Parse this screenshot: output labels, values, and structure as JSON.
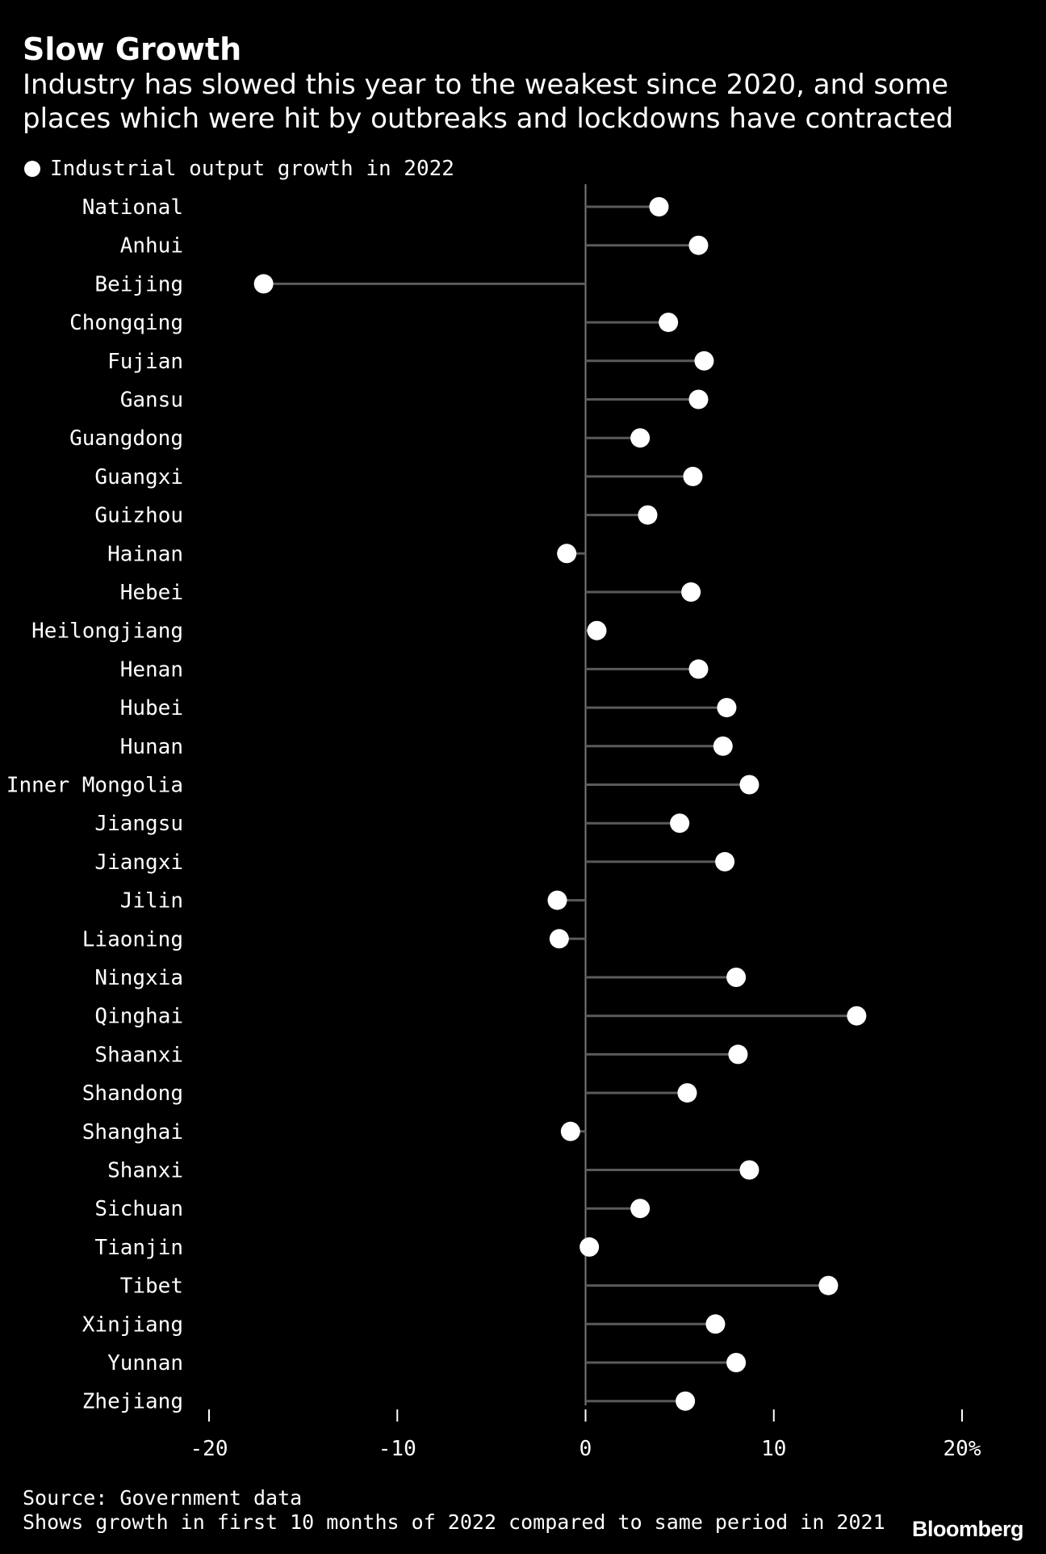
{
  "chart_data": {
    "type": "lollipop",
    "title": "Slow Growth",
    "subtitle": "Industry has slowed this year to the weakest since 2020, and some places which were hit by outbreaks and lockdowns have contracted",
    "legend": [
      {
        "name": "Industrial output growth in 2022",
        "color": "#ffffff"
      }
    ],
    "categories": [
      "National",
      "Anhui",
      "Beijing",
      "Chongqing",
      "Fujian",
      "Gansu",
      "Guangdong",
      "Guangxi",
      "Guizhou",
      "Hainan",
      "Hebei",
      "Heilongjiang",
      "Henan",
      "Hubei",
      "Hunan",
      "Inner Mongolia",
      "Jiangsu",
      "Jiangxi",
      "Jilin",
      "Liaoning",
      "Ningxia",
      "Qinghai",
      "Shaanxi",
      "Shandong",
      "Shanghai",
      "Shanxi",
      "Sichuan",
      "Tianjin",
      "Tibet",
      "Xinjiang",
      "Yunnan",
      "Zhejiang"
    ],
    "values": [
      3.9,
      6.0,
      -17.1,
      4.4,
      6.3,
      6.0,
      2.9,
      5.7,
      3.3,
      -1.0,
      5.6,
      0.6,
      6.0,
      7.5,
      7.3,
      8.7,
      5.0,
      7.4,
      -1.5,
      -1.4,
      8.0,
      14.4,
      8.1,
      5.4,
      -0.8,
      8.7,
      2.9,
      0.2,
      12.9,
      6.9,
      8.0,
      5.3
    ],
    "xlim": [
      -20,
      20
    ],
    "xticks": [
      -20,
      -10,
      0,
      10,
      20
    ],
    "xtick_labels": [
      "-20",
      "-10",
      "0",
      "10",
      "20%"
    ],
    "xlabel": "",
    "ylabel": "",
    "legend_position": "top-left"
  },
  "footer": {
    "source": "Source: Government data",
    "note": "Shows growth in first 10 months of 2022 compared to same period in 2021",
    "brand": "Bloomberg"
  },
  "colors": {
    "background": "#000000",
    "text": "#ffffff",
    "stem": "#5a5a5a",
    "axis": "#7a7a7a",
    "dot": "#ffffff"
  }
}
